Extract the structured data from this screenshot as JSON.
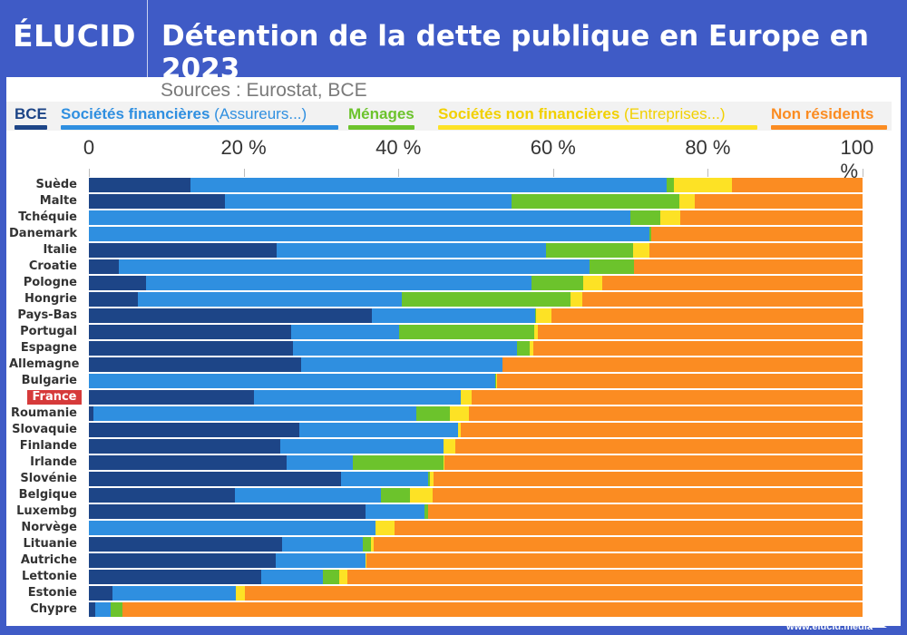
{
  "header": {
    "logo": "ÉLUCID",
    "title": "Détention de la dette publique en Europe en 2023"
  },
  "footer": {
    "url": "www.elucid.media"
  },
  "chart_data": {
    "type": "bar",
    "orientation": "horizontal",
    "stacked": true,
    "title": "Détention de la dette publique en Europe en 2023",
    "subtitle": "Sources : Eurostat, BCE",
    "xlim": [
      0,
      100
    ],
    "xticks": [
      "0",
      "20 %",
      "40 %",
      "60 %",
      "80 %",
      "100 %"
    ],
    "xtick_values": [
      0,
      20,
      40,
      60,
      80,
      100
    ],
    "legend_placement": "top",
    "highlight": "France",
    "categories": [
      "Suède",
      "Malte",
      "Tchéquie",
      "Danemark",
      "Italie",
      "Croatie",
      "Pologne",
      "Hongrie",
      "Pays-Bas",
      "Portugal",
      "Espagne",
      "Allemagne",
      "Bulgarie",
      "France",
      "Roumanie",
      "Slovaquie",
      "Finlande",
      "Irlande",
      "Slovénie",
      "Belgique",
      "Luxembg",
      "Norvège",
      "Lituanie",
      "Autriche",
      "Lettonie",
      "Estonie",
      "Chypre"
    ],
    "series": [
      {
        "name": "BCE",
        "color": "#1d4587",
        "values": [
          13.1,
          17.6,
          0,
          0,
          24.3,
          3.9,
          7.4,
          6.3,
          36.6,
          26.1,
          26.4,
          27.4,
          0,
          21.3,
          0.6,
          27.2,
          24.7,
          25.6,
          32.6,
          18.9,
          35.7,
          0,
          25.0,
          24.1,
          22.3,
          3.1,
          0.8
        ]
      },
      {
        "name": "Sociétés financières",
        "name_detail": "(Assureurs...)",
        "color": "#2f8fe0",
        "values": [
          61.6,
          37.0,
          70.0,
          72.5,
          34.8,
          60.8,
          49.8,
          34.1,
          21.1,
          14.0,
          28.9,
          26.1,
          52.5,
          26.8,
          41.7,
          20.5,
          21.1,
          8.5,
          11.2,
          18.8,
          7.7,
          37.1,
          10.4,
          11.7,
          8.0,
          15.9,
          2.0
        ]
      },
      {
        "name": "Ménages",
        "color": "#6cc32c",
        "values": [
          0.9,
          21.7,
          3.9,
          0.2,
          11.2,
          5.7,
          6.7,
          21.9,
          0.1,
          17.5,
          1.7,
          0,
          0.1,
          0,
          4.4,
          0,
          0,
          11.7,
          0.3,
          3.8,
          0.4,
          0,
          1.1,
          0,
          2.0,
          0,
          1.5
        ]
      },
      {
        "name": "Sociétés non financières",
        "name_detail": "(Entreprises...)",
        "color": "#fde225",
        "values": [
          7.5,
          2.0,
          2.5,
          0,
          2.1,
          0.1,
          2.5,
          1.5,
          2.0,
          0.4,
          0.5,
          0,
          0.2,
          1.4,
          2.4,
          0.4,
          1.6,
          0.1,
          0.4,
          2.9,
          0,
          2.4,
          0.3,
          0.1,
          1.1,
          1.2,
          0
        ]
      },
      {
        "name": "Non résidents",
        "color": "#fb8c22",
        "values": [
          16.9,
          21.7,
          23.6,
          27.3,
          27.6,
          29.5,
          33.6,
          36.2,
          40.3,
          42.0,
          42.5,
          46.5,
          47.2,
          50.5,
          50.9,
          51.9,
          52.6,
          54.1,
          55.5,
          55.6,
          56.2,
          60.5,
          63.2,
          64.1,
          66.6,
          79.8,
          95.7
        ]
      }
    ]
  }
}
